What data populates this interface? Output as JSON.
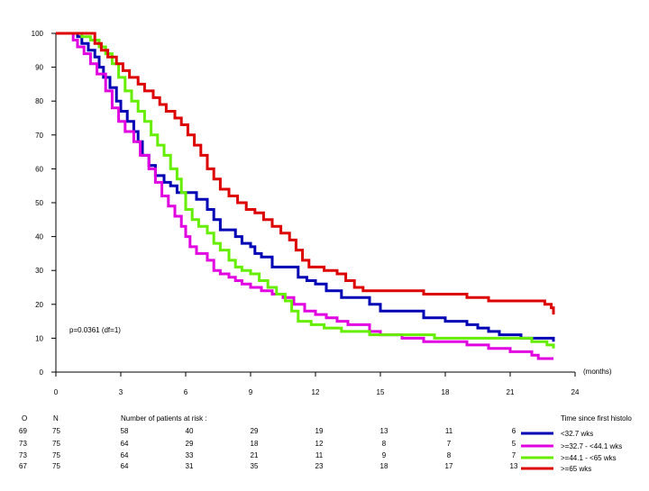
{
  "chart_data": {
    "type": "line",
    "step": true,
    "xlim": [
      0,
      24
    ],
    "ylim": [
      0,
      100
    ],
    "x_ticks": [
      "0",
      "3",
      "6",
      "9",
      "12",
      "15",
      "18",
      "21",
      "24"
    ],
    "y_ticks": [
      "0",
      "10",
      "20",
      "30",
      "40",
      "50",
      "60",
      "70",
      "80",
      "90",
      "100"
    ],
    "x_unit_label": "(months)",
    "annotation": "p=0.0361 (df=1)",
    "legend_title": "Time since first histolo",
    "series": [
      {
        "name": "<32.7 wks",
        "color": "#0000b4",
        "x": [
          0,
          1.0,
          1.2,
          1.5,
          1.8,
          2.0,
          2.2,
          2.5,
          2.8,
          3.0,
          3.3,
          3.6,
          3.8,
          4.0,
          4.3,
          4.6,
          5.0,
          5.3,
          5.6,
          6.2,
          6.5,
          7.0,
          7.3,
          7.6,
          8.0,
          8.3,
          8.6,
          9.0,
          9.2,
          9.5,
          10.0,
          10.4,
          11.2,
          11.6,
          12.0,
          12.5,
          13.2,
          13.5,
          14.5,
          15.0,
          16.0,
          17.0,
          18.0,
          19.0,
          19.5,
          20.0,
          20.5,
          21.5,
          22.0,
          23.0
        ],
        "y": [
          100,
          99,
          97,
          95,
          93,
          90,
          87,
          84,
          80,
          77,
          74,
          71,
          68,
          64,
          61,
          58,
          56,
          55,
          53,
          53,
          51,
          48,
          45,
          42,
          42,
          40,
          38,
          37,
          35,
          34,
          31,
          31,
          28,
          27,
          26,
          24,
          22,
          22,
          20,
          18,
          18,
          16,
          15,
          14,
          13,
          12,
          11,
          10,
          10,
          9
        ]
      },
      {
        "name": ">=32.7 - <44.1 wks",
        "color": "#e000e0",
        "x": [
          0,
          0.8,
          1.0,
          1.3,
          1.6,
          1.9,
          2.3,
          2.6,
          2.9,
          3.2,
          3.6,
          3.9,
          4.3,
          4.6,
          4.9,
          5.2,
          5.5,
          5.8,
          6.0,
          6.2,
          6.5,
          7.0,
          7.3,
          7.6,
          8.0,
          8.3,
          8.6,
          9.0,
          9.5,
          10.0,
          10.5,
          11.0,
          11.5,
          12.0,
          12.5,
          13.0,
          13.5,
          14.5,
          15.0,
          16.0,
          17.0,
          18.0,
          19.0,
          20.0,
          21.0,
          22.0,
          22.3,
          23.0
        ],
        "y": [
          100,
          98,
          96,
          94,
          91,
          88,
          83,
          78,
          74,
          71,
          68,
          64,
          60,
          56,
          52,
          49,
          46,
          43,
          40,
          37,
          35,
          33,
          30,
          29,
          28,
          27,
          26,
          25,
          24,
          23,
          22,
          20,
          18,
          17,
          16,
          15,
          14,
          12,
          11,
          10,
          9,
          9,
          8,
          7,
          6,
          5,
          4,
          4
        ]
      },
      {
        "name": ">=44.1 - <65 wks",
        "color": "#66ee00",
        "x": [
          0,
          1.2,
          1.6,
          2.0,
          2.3,
          2.6,
          2.9,
          3.2,
          3.5,
          3.8,
          4.1,
          4.4,
          4.7,
          5.0,
          5.3,
          5.6,
          5.8,
          6.0,
          6.3,
          6.6,
          7.0,
          7.3,
          7.6,
          8.0,
          8.3,
          8.6,
          9.0,
          9.4,
          9.8,
          10.2,
          10.6,
          10.9,
          11.2,
          11.8,
          12.4,
          13.2,
          14.5,
          16.0,
          17.5,
          19.0,
          20.0,
          21.0,
          22.0,
          22.7,
          23.0
        ],
        "y": [
          100,
          99,
          98,
          96,
          94,
          91,
          87,
          83,
          80,
          77,
          74,
          70,
          67,
          64,
          60,
          57,
          53,
          48,
          45,
          43,
          41,
          38,
          36,
          33,
          31,
          30,
          29,
          27,
          25,
          23,
          21,
          18,
          15,
          14,
          13,
          12,
          11,
          11,
          10,
          10,
          10,
          10,
          9,
          8,
          7
        ]
      },
      {
        "name": ">=65 wks",
        "color": "#dd0000",
        "x": [
          0,
          1.8,
          2.1,
          2.4,
          2.8,
          3.1,
          3.4,
          3.8,
          4.1,
          4.5,
          4.8,
          5.1,
          5.5,
          5.8,
          6.1,
          6.4,
          6.7,
          7.0,
          7.3,
          7.6,
          8.0,
          8.4,
          8.8,
          9.2,
          9.6,
          10.0,
          10.4,
          10.8,
          11.1,
          11.4,
          11.7,
          12.0,
          12.4,
          13.0,
          13.4,
          13.8,
          14.2,
          14.6,
          15.0,
          16.0,
          17.0,
          18.0,
          19.0,
          20.0,
          20.5,
          21.0,
          22.0,
          22.6,
          22.9,
          23.0
        ],
        "y": [
          100,
          97,
          95,
          93,
          91,
          89,
          87,
          85,
          83,
          81,
          79,
          77,
          75,
          73,
          70,
          67,
          64,
          60,
          57,
          54,
          52,
          50,
          48,
          47,
          45,
          43,
          41,
          39,
          36,
          33,
          31,
          31,
          30,
          29,
          27,
          25,
          24,
          24,
          24,
          24,
          23,
          23,
          22,
          21,
          21,
          21,
          21,
          20,
          19,
          17
        ]
      }
    ]
  },
  "risk_table": {
    "headers": {
      "o": "O",
      "n": "N",
      "title": "Number of patients at risk :"
    },
    "rows": [
      {
        "o": "69",
        "n": "75",
        "values": [
          "58",
          "40",
          "29",
          "19",
          "13",
          "11",
          "6"
        ]
      },
      {
        "o": "73",
        "n": "75",
        "values": [
          "64",
          "29",
          "18",
          "12",
          "8",
          "7",
          "5"
        ]
      },
      {
        "o": "73",
        "n": "75",
        "values": [
          "64",
          "33",
          "21",
          "11",
          "9",
          "8",
          "7"
        ]
      },
      {
        "o": "67",
        "n": "75",
        "values": [
          "64",
          "31",
          "35",
          "23",
          "18",
          "17",
          "13"
        ]
      }
    ],
    "value_times": [
      3,
      6,
      9,
      12,
      15,
      18,
      21
    ]
  }
}
